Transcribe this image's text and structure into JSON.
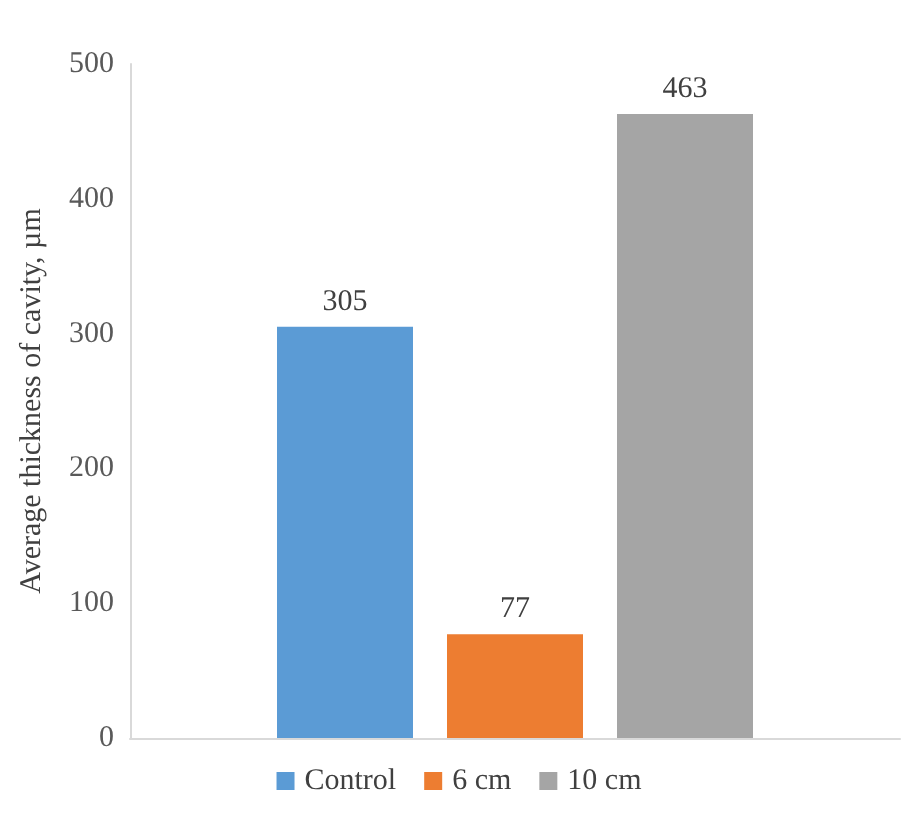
{
  "chart_data": {
    "type": "bar",
    "ylabel": "Average thickness of cavity, µm",
    "categories": [
      null
    ],
    "series": [
      {
        "name": "Control",
        "color": "#5b9bd5",
        "values": [
          305
        ]
      },
      {
        "name": "6 cm",
        "color": "#ed7d31",
        "values": [
          77
        ]
      },
      {
        "name": "10 cm",
        "color": "#a5a5a5",
        "values": [
          463
        ]
      }
    ],
    "ylim": [
      0,
      500
    ],
    "yticks": [
      0,
      100,
      200,
      300,
      400,
      500
    ],
    "grid": false,
    "legend": "bottom",
    "data_labels": true
  }
}
